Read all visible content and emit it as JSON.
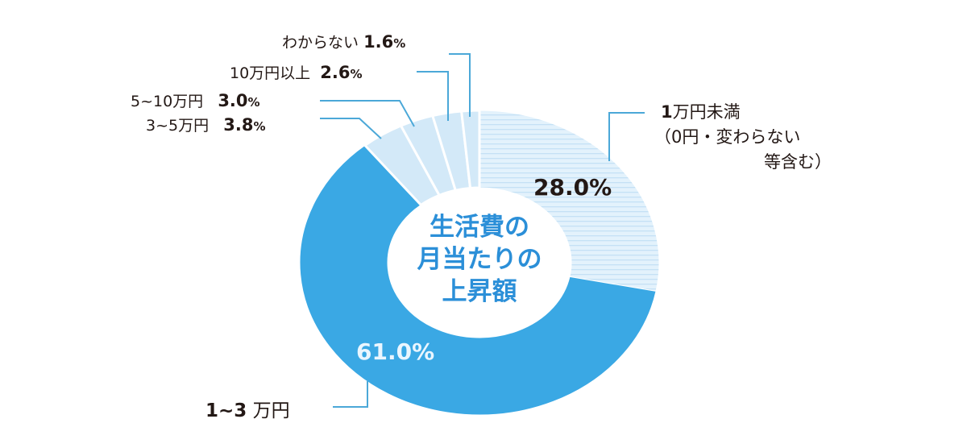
{
  "chart_data": {
    "type": "pie",
    "subtype": "donut",
    "title": "生活費の月当たりの上昇額",
    "start_angle": "12 o'clock",
    "direction": "clockwise",
    "slices": [
      {
        "label": "1万円未満（0円・変わらない等含む）",
        "value": 28.0,
        "color": "#d6ecfa",
        "pattern": "horizontal-stripes"
      },
      {
        "label": "1~3 万円",
        "value": 61.0,
        "color": "#3aa8e4"
      },
      {
        "label": "3~5万円",
        "value": 3.8,
        "color": "#d3e9f8"
      },
      {
        "label": "5~10万円",
        "value": 3.0,
        "color": "#d3e9f8"
      },
      {
        "label": "10万円以上",
        "value": 2.6,
        "color": "#d3e9f8"
      },
      {
        "label": "わからない",
        "value": 1.6,
        "color": "#d3e9f8"
      }
    ]
  },
  "labels": {
    "center_line1": "生活費の",
    "center_line2": "月当たりの",
    "center_line3": "上昇額",
    "s1_line1_num": "1",
    "s1_line1_text": "万円未満",
    "s1_line2": "（0円・変わらない",
    "s1_line3": "等含む）",
    "s1_pct": "28.0%",
    "s2_label_num": "1~3",
    "s2_label_text": "万円",
    "s2_pct": "61.0%",
    "s3_label": "3~5万円",
    "s3_pct": "3.8",
    "s4_label": "5~10万円",
    "s4_pct": "3.0",
    "s5_label": "10万円以上",
    "s5_pct": "2.6",
    "s6_label": "わからない",
    "s6_pct": "1.6",
    "pct_sign": "%"
  }
}
